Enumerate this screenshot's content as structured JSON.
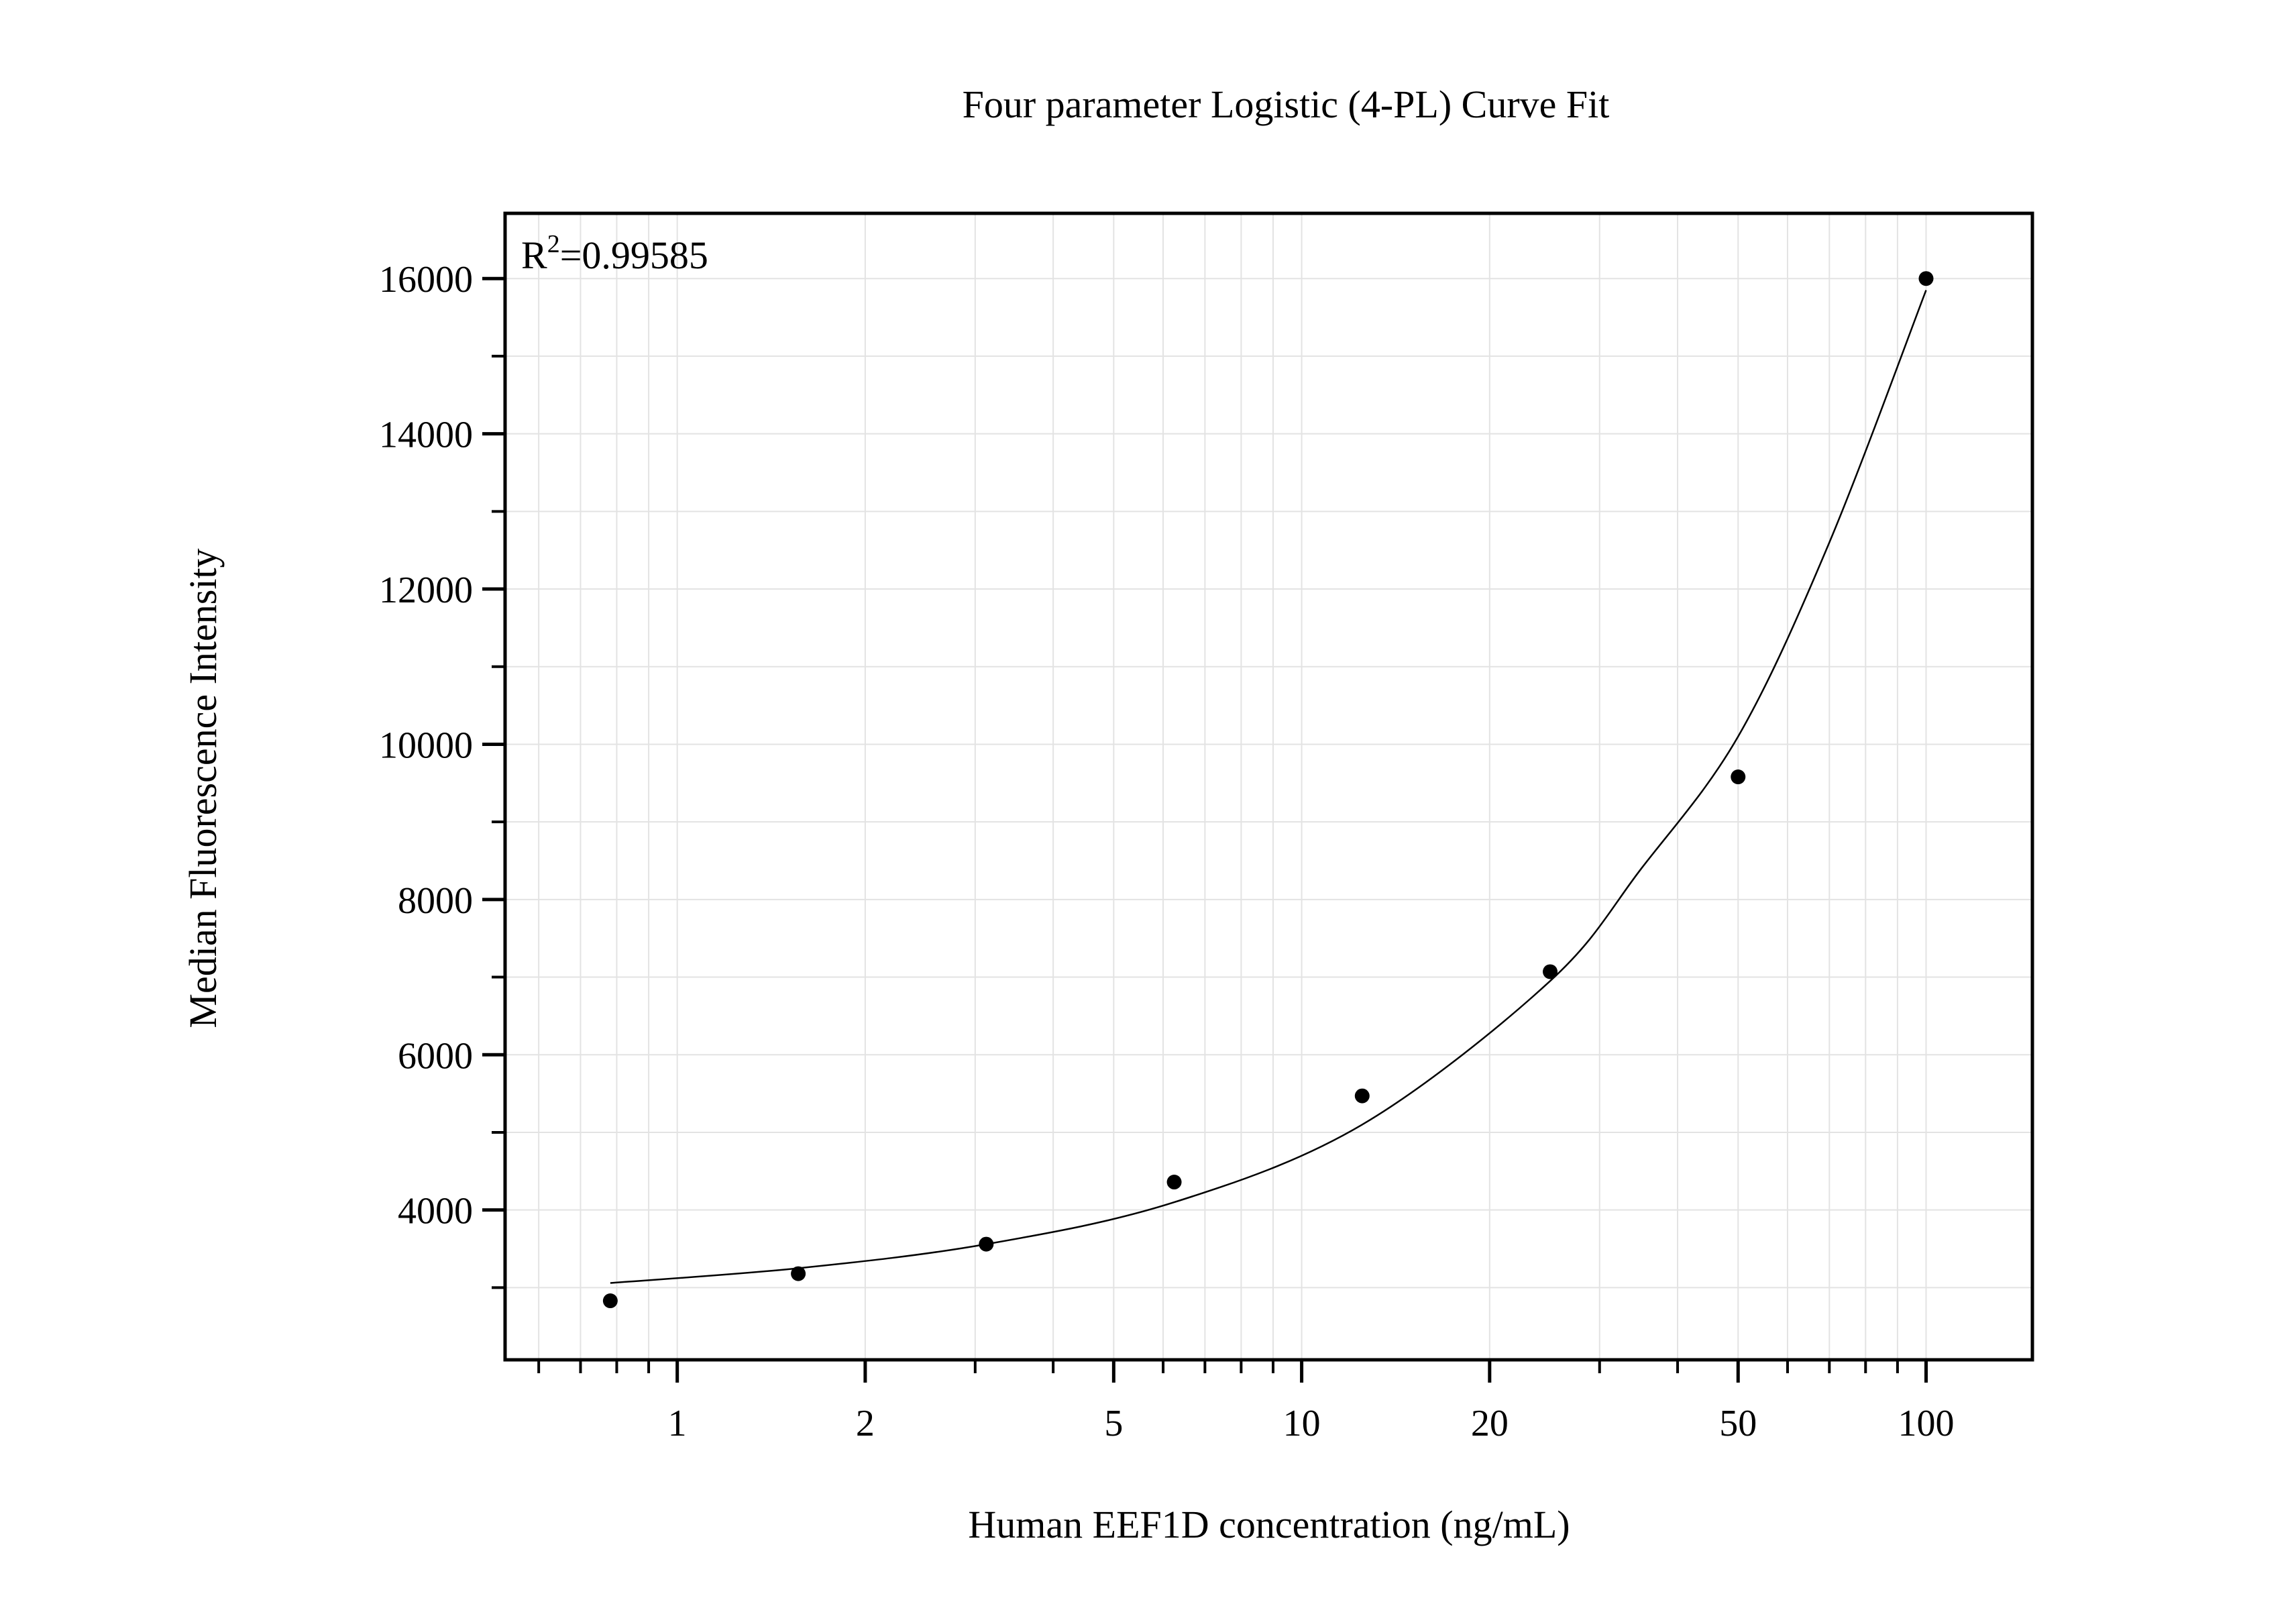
{
  "chart_data": {
    "type": "scatter",
    "title": "Four parameter Logistic (4-PL) Curve Fit",
    "xlabel": "Human EEF1D concentration (ng/mL)",
    "ylabel": "Median Fluorescence Intensity",
    "x_scale": "log",
    "xlim": [
      0.53,
      148
    ],
    "ylim": [
      2070,
      16840
    ],
    "x_ticks": [
      1,
      2,
      5,
      10,
      20,
      50,
      100
    ],
    "x_tick_labels": [
      "1",
      "2",
      "5",
      "10",
      "20",
      "50",
      "100"
    ],
    "y_ticks": [
      4000,
      6000,
      8000,
      10000,
      12000,
      14000,
      16000
    ],
    "y_tick_labels": [
      "4000",
      "6000",
      "8000",
      "10000",
      "12000",
      "14000",
      "16000"
    ],
    "grid": true,
    "annotation": {
      "r2_prefix": "R",
      "r2_sup": "2",
      "r2_value": "=0.99585"
    },
    "points": {
      "x": [
        0.78125,
        1.5625,
        3.125,
        6.25,
        12.5,
        25,
        50,
        100
      ],
      "y": [
        2830,
        3180,
        3560,
        4360,
        5470,
        7070,
        9580,
        16000
      ]
    },
    "fit_curve": {
      "x": [
        0.78125,
        1.5625,
        3.125,
        6.25,
        12.5,
        25,
        35,
        50,
        70,
        100
      ],
      "y": [
        3060,
        3250,
        3560,
        4100,
        5100,
        6950,
        8400,
        10100,
        12600,
        15850
      ]
    },
    "colors": {
      "points": "#000000",
      "curve": "#000000",
      "grid": "#e3e3e3"
    }
  }
}
